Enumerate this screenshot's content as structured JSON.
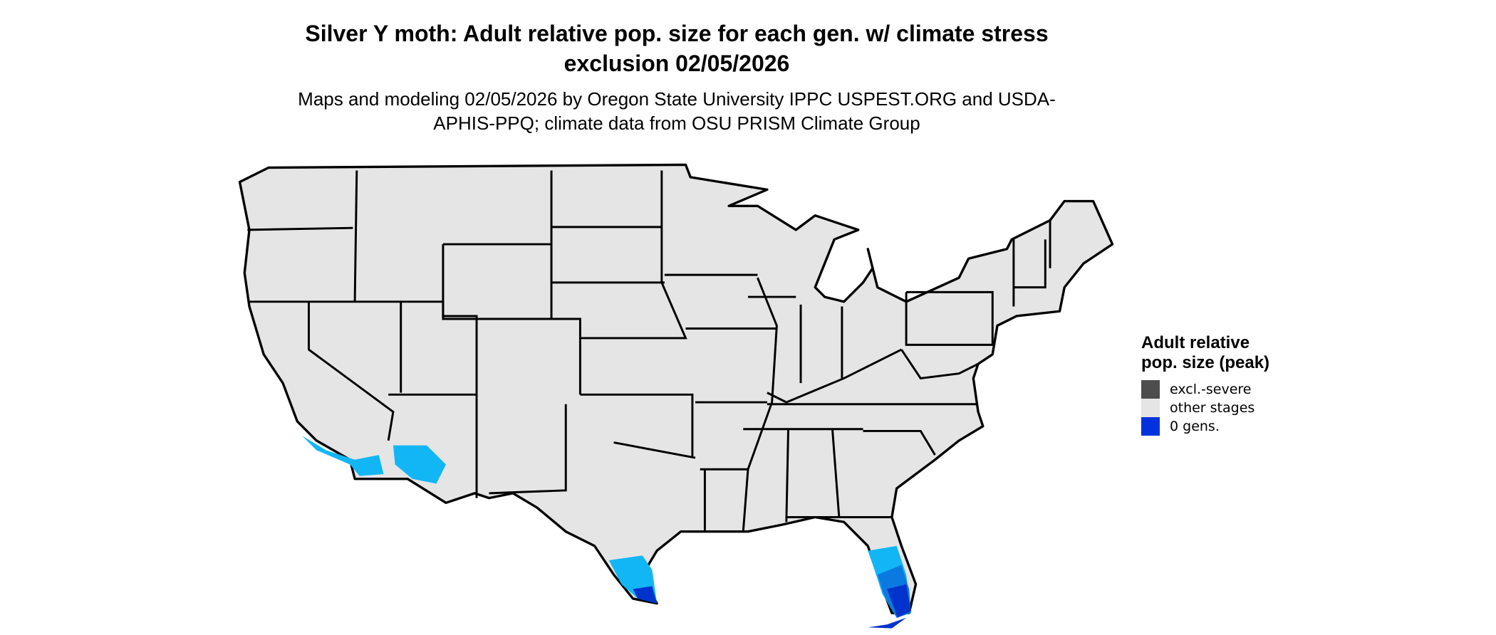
{
  "title": "Silver Y moth: Adult relative pop. size for each gen. w/ climate stress exclusion 02/05/2026",
  "subtitle": "Maps and modeling 02/05/2026 by Oregon State University IPPC USPEST.ORG and USDA-APHIS-PPQ; climate data from OSU PRISM Climate Group",
  "legend": {
    "title": "Adult relative pop. size (peak)",
    "items": [
      {
        "label": "excl.-severe",
        "color": "#4d4d4d"
      },
      {
        "label": "other stages",
        "color": "#e5e5e5"
      },
      {
        "label": "0 gens.",
        "color": "#0033dd"
      }
    ]
  },
  "colors": {
    "land": "#e5e5e5",
    "border": "#000000",
    "blue_light": "#12b6f5",
    "blue_mid": "#0a7ae0",
    "blue_dark": "#0033cc",
    "blue_deep": "#001a80"
  },
  "region": "contiguous United States"
}
